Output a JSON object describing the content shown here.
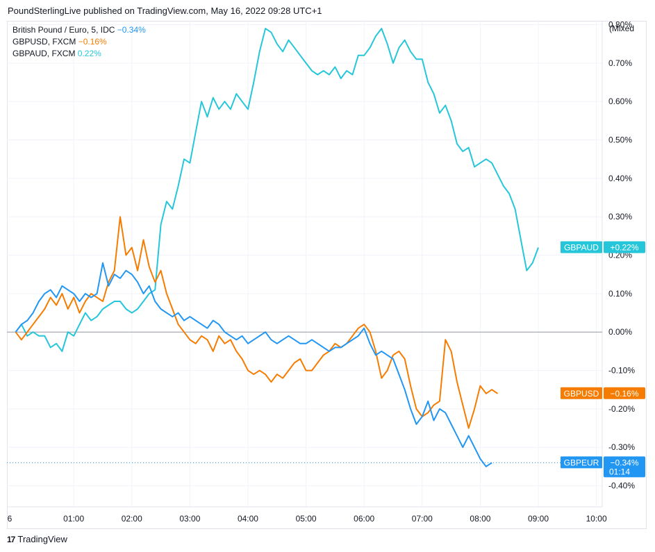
{
  "header": {
    "publisher_line": "PoundSterlingLive published on TradingView.com, May 16, 2022 09:28 UTC+1"
  },
  "scale_mode": "Mixed",
  "footer": {
    "brand": "TradingView",
    "logo_glyph": "17"
  },
  "legend": [
    {
      "name": "British Pound / Euro, 5, IDC",
      "change": "−0.34%",
      "color": "#2196f3"
    },
    {
      "name": "GBPUSD, FXCM",
      "change": "−0.16%",
      "color": "#f57c00"
    },
    {
      "name": "GBPAUD, FXCM",
      "change": "0.22%",
      "color": "#26c6da"
    }
  ],
  "chart_data": {
    "type": "line",
    "title": "",
    "xlabel": "",
    "ylabel": "",
    "x_ticks": [
      "6",
      "01:00",
      "02:00",
      "03:00",
      "04:00",
      "05:00",
      "06:00",
      "07:00",
      "08:00",
      "09:00",
      "10:00"
    ],
    "y_ticks": [
      "0.80%",
      "0.70%",
      "0.60%",
      "0.50%",
      "0.40%",
      "0.30%",
      "0.20%",
      "0.10%",
      "0.00%",
      "-0.10%",
      "-0.20%",
      "-0.30%",
      "-0.40%"
    ],
    "y_tick_values": [
      0.8,
      0.7,
      0.6,
      0.5,
      0.4,
      0.3,
      0.2,
      0.1,
      0.0,
      -0.1,
      -0.2,
      -0.3,
      -0.4
    ],
    "x_unit": "hours after midnight",
    "y_unit": "percent change",
    "xlim": [
      -0.15,
      10.1
    ],
    "ylim": [
      -0.455,
      0.81
    ],
    "grid": true,
    "series": [
      {
        "name": "GBPAUD",
        "color": "#26c6da",
        "last_label": "+0.22%",
        "points": [
          [
            0.0,
            0.0
          ],
          [
            0.1,
            0.02
          ],
          [
            0.2,
            -0.01
          ],
          [
            0.3,
            0.0
          ],
          [
            0.4,
            -0.01
          ],
          [
            0.5,
            -0.01
          ],
          [
            0.6,
            -0.04
          ],
          [
            0.7,
            -0.03
          ],
          [
            0.8,
            -0.05
          ],
          [
            0.9,
            0.0
          ],
          [
            1.0,
            -0.01
          ],
          [
            1.1,
            0.02
          ],
          [
            1.2,
            0.05
          ],
          [
            1.3,
            0.03
          ],
          [
            1.4,
            0.04
          ],
          [
            1.5,
            0.06
          ],
          [
            1.6,
            0.07
          ],
          [
            1.7,
            0.08
          ],
          [
            1.8,
            0.08
          ],
          [
            1.9,
            0.06
          ],
          [
            2.0,
            0.05
          ],
          [
            2.1,
            0.06
          ],
          [
            2.2,
            0.08
          ],
          [
            2.3,
            0.1
          ],
          [
            2.4,
            0.11
          ],
          [
            2.5,
            0.28
          ],
          [
            2.6,
            0.34
          ],
          [
            2.7,
            0.32
          ],
          [
            2.8,
            0.38
          ],
          [
            2.9,
            0.45
          ],
          [
            3.0,
            0.44
          ],
          [
            3.1,
            0.52
          ],
          [
            3.2,
            0.6
          ],
          [
            3.3,
            0.56
          ],
          [
            3.4,
            0.61
          ],
          [
            3.5,
            0.58
          ],
          [
            3.6,
            0.6
          ],
          [
            3.7,
            0.58
          ],
          [
            3.8,
            0.62
          ],
          [
            3.9,
            0.6
          ],
          [
            4.0,
            0.58
          ],
          [
            4.1,
            0.65
          ],
          [
            4.2,
            0.73
          ],
          [
            4.3,
            0.79
          ],
          [
            4.4,
            0.78
          ],
          [
            4.5,
            0.75
          ],
          [
            4.6,
            0.73
          ],
          [
            4.7,
            0.76
          ],
          [
            4.8,
            0.74
          ],
          [
            4.9,
            0.72
          ],
          [
            5.0,
            0.7
          ],
          [
            5.1,
            0.68
          ],
          [
            5.2,
            0.67
          ],
          [
            5.3,
            0.68
          ],
          [
            5.4,
            0.67
          ],
          [
            5.5,
            0.69
          ],
          [
            5.6,
            0.66
          ],
          [
            5.7,
            0.68
          ],
          [
            5.8,
            0.67
          ],
          [
            5.9,
            0.72
          ],
          [
            6.0,
            0.72
          ],
          [
            6.1,
            0.74
          ],
          [
            6.2,
            0.77
          ],
          [
            6.3,
            0.79
          ],
          [
            6.4,
            0.75
          ],
          [
            6.5,
            0.7
          ],
          [
            6.6,
            0.74
          ],
          [
            6.7,
            0.76
          ],
          [
            6.8,
            0.73
          ],
          [
            6.9,
            0.71
          ],
          [
            7.0,
            0.71
          ],
          [
            7.1,
            0.65
          ],
          [
            7.2,
            0.62
          ],
          [
            7.3,
            0.57
          ],
          [
            7.4,
            0.59
          ],
          [
            7.5,
            0.55
          ],
          [
            7.6,
            0.49
          ],
          [
            7.7,
            0.47
          ],
          [
            7.8,
            0.48
          ],
          [
            7.9,
            0.43
          ],
          [
            8.0,
            0.44
          ],
          [
            8.1,
            0.45
          ],
          [
            8.2,
            0.44
          ],
          [
            8.3,
            0.41
          ],
          [
            8.4,
            0.38
          ],
          [
            8.5,
            0.36
          ],
          [
            8.6,
            0.32
          ],
          [
            8.7,
            0.24
          ],
          [
            8.8,
            0.16
          ],
          [
            8.9,
            0.18
          ],
          [
            9.0,
            0.22
          ]
        ]
      },
      {
        "name": "GBPUSD",
        "color": "#f57c00",
        "last_label": "−0.16%",
        "points": [
          [
            0.0,
            0.0
          ],
          [
            0.1,
            -0.02
          ],
          [
            0.2,
            0.0
          ],
          [
            0.3,
            0.02
          ],
          [
            0.4,
            0.04
          ],
          [
            0.5,
            0.06
          ],
          [
            0.6,
            0.09
          ],
          [
            0.7,
            0.07
          ],
          [
            0.8,
            0.1
          ],
          [
            0.9,
            0.06
          ],
          [
            1.0,
            0.09
          ],
          [
            1.1,
            0.05
          ],
          [
            1.2,
            0.08
          ],
          [
            1.3,
            0.1
          ],
          [
            1.4,
            0.09
          ],
          [
            1.5,
            0.08
          ],
          [
            1.6,
            0.13
          ],
          [
            1.7,
            0.16
          ],
          [
            1.8,
            0.3
          ],
          [
            1.9,
            0.2
          ],
          [
            2.0,
            0.22
          ],
          [
            2.1,
            0.16
          ],
          [
            2.2,
            0.24
          ],
          [
            2.3,
            0.17
          ],
          [
            2.4,
            0.13
          ],
          [
            2.5,
            0.16
          ],
          [
            2.6,
            0.1
          ],
          [
            2.7,
            0.06
          ],
          [
            2.8,
            0.02
          ],
          [
            2.9,
            0.0
          ],
          [
            3.0,
            -0.02
          ],
          [
            3.1,
            -0.03
          ],
          [
            3.2,
            -0.01
          ],
          [
            3.3,
            -0.02
          ],
          [
            3.4,
            -0.05
          ],
          [
            3.5,
            -0.01
          ],
          [
            3.6,
            -0.03
          ],
          [
            3.7,
            -0.02
          ],
          [
            3.8,
            -0.05
          ],
          [
            3.9,
            -0.07
          ],
          [
            4.0,
            -0.1
          ],
          [
            4.1,
            -0.11
          ],
          [
            4.2,
            -0.1
          ],
          [
            4.3,
            -0.11
          ],
          [
            4.4,
            -0.13
          ],
          [
            4.5,
            -0.11
          ],
          [
            4.6,
            -0.12
          ],
          [
            4.7,
            -0.1
          ],
          [
            4.8,
            -0.08
          ],
          [
            4.9,
            -0.07
          ],
          [
            5.0,
            -0.1
          ],
          [
            5.1,
            -0.1
          ],
          [
            5.2,
            -0.08
          ],
          [
            5.3,
            -0.06
          ],
          [
            5.4,
            -0.05
          ],
          [
            5.5,
            -0.03
          ],
          [
            5.6,
            -0.04
          ],
          [
            5.7,
            -0.03
          ],
          [
            5.8,
            -0.01
          ],
          [
            5.9,
            0.01
          ],
          [
            6.0,
            0.02
          ],
          [
            6.1,
            0.0
          ],
          [
            6.2,
            -0.05
          ],
          [
            6.3,
            -0.12
          ],
          [
            6.4,
            -0.1
          ],
          [
            6.5,
            -0.06
          ],
          [
            6.6,
            -0.05
          ],
          [
            6.7,
            -0.07
          ],
          [
            6.8,
            -0.14
          ],
          [
            6.9,
            -0.2
          ],
          [
            7.0,
            -0.22
          ],
          [
            7.1,
            -0.21
          ],
          [
            7.2,
            -0.19
          ],
          [
            7.3,
            -0.18
          ],
          [
            7.4,
            -0.02
          ],
          [
            7.5,
            -0.05
          ],
          [
            7.6,
            -0.13
          ],
          [
            7.7,
            -0.19
          ],
          [
            7.8,
            -0.25
          ],
          [
            7.9,
            -0.2
          ],
          [
            8.0,
            -0.14
          ],
          [
            8.1,
            -0.16
          ],
          [
            8.2,
            -0.15
          ],
          [
            8.3,
            -0.16
          ]
        ]
      },
      {
        "name": "GBPEUR",
        "color": "#2196f3",
        "last_label": "−0.34%",
        "countdown": "01:14",
        "points": [
          [
            0.0,
            0.0
          ],
          [
            0.1,
            0.02
          ],
          [
            0.2,
            0.03
          ],
          [
            0.3,
            0.05
          ],
          [
            0.4,
            0.08
          ],
          [
            0.5,
            0.1
          ],
          [
            0.6,
            0.11
          ],
          [
            0.7,
            0.09
          ],
          [
            0.8,
            0.12
          ],
          [
            0.9,
            0.11
          ],
          [
            1.0,
            0.1
          ],
          [
            1.1,
            0.08
          ],
          [
            1.2,
            0.1
          ],
          [
            1.3,
            0.09
          ],
          [
            1.4,
            0.1
          ],
          [
            1.5,
            0.18
          ],
          [
            1.6,
            0.12
          ],
          [
            1.7,
            0.15
          ],
          [
            1.8,
            0.14
          ],
          [
            1.9,
            0.16
          ],
          [
            2.0,
            0.15
          ],
          [
            2.1,
            0.13
          ],
          [
            2.2,
            0.1
          ],
          [
            2.3,
            0.12
          ],
          [
            2.4,
            0.08
          ],
          [
            2.5,
            0.06
          ],
          [
            2.6,
            0.05
          ],
          [
            2.7,
            0.04
          ],
          [
            2.8,
            0.05
          ],
          [
            2.9,
            0.03
          ],
          [
            3.0,
            0.04
          ],
          [
            3.1,
            0.03
          ],
          [
            3.2,
            0.02
          ],
          [
            3.3,
            0.01
          ],
          [
            3.4,
            0.03
          ],
          [
            3.5,
            0.02
          ],
          [
            3.6,
            0.0
          ],
          [
            3.7,
            -0.01
          ],
          [
            3.8,
            -0.02
          ],
          [
            3.9,
            -0.01
          ],
          [
            4.0,
            -0.03
          ],
          [
            4.1,
            -0.02
          ],
          [
            4.2,
            -0.01
          ],
          [
            4.3,
            0.0
          ],
          [
            4.4,
            -0.02
          ],
          [
            4.5,
            -0.03
          ],
          [
            4.6,
            -0.02
          ],
          [
            4.7,
            -0.01
          ],
          [
            4.8,
            -0.02
          ],
          [
            4.9,
            -0.03
          ],
          [
            5.0,
            -0.03
          ],
          [
            5.1,
            -0.02
          ],
          [
            5.2,
            -0.03
          ],
          [
            5.3,
            -0.04
          ],
          [
            5.4,
            -0.05
          ],
          [
            5.5,
            -0.04
          ],
          [
            5.6,
            -0.04
          ],
          [
            5.7,
            -0.03
          ],
          [
            5.8,
            -0.02
          ],
          [
            5.9,
            -0.01
          ],
          [
            6.0,
            0.01
          ],
          [
            6.1,
            -0.03
          ],
          [
            6.2,
            -0.06
          ],
          [
            6.3,
            -0.05
          ],
          [
            6.4,
            -0.06
          ],
          [
            6.5,
            -0.07
          ],
          [
            6.6,
            -0.11
          ],
          [
            6.7,
            -0.15
          ],
          [
            6.8,
            -0.2
          ],
          [
            6.9,
            -0.24
          ],
          [
            7.0,
            -0.22
          ],
          [
            7.1,
            -0.18
          ],
          [
            7.2,
            -0.23
          ],
          [
            7.3,
            -0.2
          ],
          [
            7.4,
            -0.21
          ],
          [
            7.5,
            -0.24
          ],
          [
            7.6,
            -0.27
          ],
          [
            7.7,
            -0.3
          ],
          [
            7.8,
            -0.27
          ],
          [
            7.9,
            -0.3
          ],
          [
            8.0,
            -0.33
          ],
          [
            8.1,
            -0.35
          ],
          [
            8.2,
            -0.34
          ]
        ]
      }
    ]
  }
}
